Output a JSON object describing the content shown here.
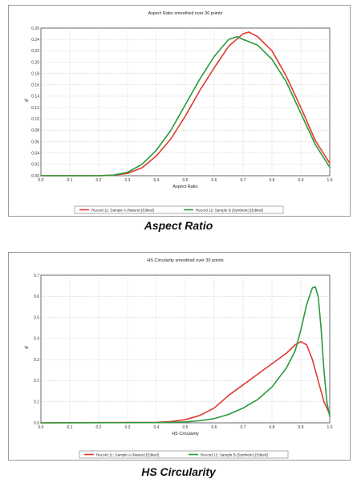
{
  "chart_data": [
    {
      "type": "line",
      "title": "Aspect Ratio smoothed over 30 points",
      "xlabel": "Aspect Ratio",
      "ylabel": "%",
      "caption": "Aspect Ratio",
      "xlim": [
        0.0,
        1.0
      ],
      "ylim": [
        0.0,
        0.26
      ],
      "xticks": [
        "0.0",
        "0.1",
        "0.2",
        "0.3",
        "0.4",
        "0.5",
        "0.6",
        "0.7",
        "0.8",
        "0.9",
        "1.0"
      ],
      "yticks": [
        "0.00",
        "0.02",
        "0.04",
        "0.06",
        "0.08",
        "0.10",
        "0.12",
        "0.14",
        "0.16",
        "0.18",
        "0.20",
        "0.22",
        "0.24",
        "0.26"
      ],
      "grid": true,
      "legend_position": "bottom",
      "series": [
        {
          "name": "Record 11: Sample A (Nature) [Edited]",
          "color": "#e03a30",
          "x": [
            0.0,
            0.2,
            0.25,
            0.3,
            0.35,
            0.4,
            0.45,
            0.5,
            0.55,
            0.6,
            0.65,
            0.7,
            0.72,
            0.75,
            0.8,
            0.85,
            0.9,
            0.95,
            1.0
          ],
          "y": [
            0.0,
            0.0,
            0.001,
            0.004,
            0.014,
            0.035,
            0.065,
            0.105,
            0.15,
            0.19,
            0.228,
            0.25,
            0.253,
            0.245,
            0.22,
            0.175,
            0.12,
            0.062,
            0.022
          ]
        },
        {
          "name": "Record 12: Sample B (Synthetic) [Edited]",
          "color": "#2a9a3a",
          "x": [
            0.0,
            0.2,
            0.25,
            0.3,
            0.35,
            0.4,
            0.45,
            0.5,
            0.55,
            0.6,
            0.65,
            0.68,
            0.7,
            0.75,
            0.8,
            0.85,
            0.9,
            0.95,
            1.0
          ],
          "y": [
            0.0,
            0.0,
            0.001,
            0.006,
            0.02,
            0.045,
            0.08,
            0.125,
            0.17,
            0.21,
            0.24,
            0.245,
            0.24,
            0.23,
            0.205,
            0.165,
            0.11,
            0.055,
            0.015
          ]
        }
      ]
    },
    {
      "type": "line",
      "title": "HS Circularity smoothed over 30 points",
      "xlabel": "HS Circularity",
      "ylabel": "%",
      "caption": "HS Circularity",
      "xlim": [
        0.0,
        1.0
      ],
      "ylim": [
        0.0,
        0.7
      ],
      "xticks": [
        "0.0",
        "0.1",
        "0.2",
        "0.3",
        "0.4",
        "0.5",
        "0.6",
        "0.7",
        "0.8",
        "0.9",
        "1.0"
      ],
      "yticks": [
        "0.0",
        "0.1",
        "0.2",
        "0.3",
        "0.4",
        "0.5",
        "0.6",
        "0.7"
      ],
      "grid": true,
      "legend_position": "bottom",
      "series": [
        {
          "name": "Record 11: Sample A (Nature) [Edited]",
          "color": "#e03a30",
          "x": [
            0.0,
            0.4,
            0.45,
            0.5,
            0.55,
            0.6,
            0.65,
            0.7,
            0.75,
            0.8,
            0.85,
            0.88,
            0.9,
            0.92,
            0.94,
            0.96,
            0.98,
            1.0
          ],
          "y": [
            0.0,
            0.002,
            0.006,
            0.015,
            0.035,
            0.07,
            0.13,
            0.18,
            0.23,
            0.28,
            0.33,
            0.37,
            0.385,
            0.37,
            0.3,
            0.2,
            0.1,
            0.04
          ]
        },
        {
          "name": "Record 12: Sample B (Synthetic) [Edited]",
          "color": "#2a9a3a",
          "x": [
            0.0,
            0.4,
            0.5,
            0.55,
            0.6,
            0.65,
            0.7,
            0.75,
            0.8,
            0.85,
            0.88,
            0.9,
            0.92,
            0.94,
            0.95,
            0.96,
            0.97,
            0.98,
            0.99,
            1.0
          ],
          "y": [
            0.0,
            0.001,
            0.004,
            0.01,
            0.02,
            0.04,
            0.07,
            0.11,
            0.17,
            0.26,
            0.34,
            0.44,
            0.56,
            0.64,
            0.645,
            0.6,
            0.45,
            0.25,
            0.1,
            0.03
          ]
        }
      ]
    }
  ]
}
